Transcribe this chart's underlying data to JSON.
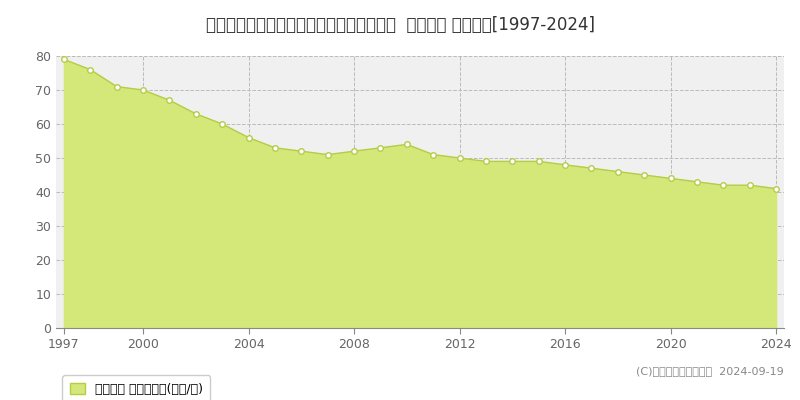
{
  "title": "神奈川県横須賀市桜が丘１丁目８６番３６  基準地価 地価推移[1997-2024]",
  "years": [
    1997,
    1998,
    1999,
    2000,
    2001,
    2002,
    2003,
    2004,
    2005,
    2006,
    2007,
    2008,
    2009,
    2010,
    2011,
    2012,
    2013,
    2014,
    2015,
    2016,
    2017,
    2018,
    2019,
    2020,
    2021,
    2022,
    2023,
    2024
  ],
  "values": [
    79,
    76,
    71,
    70,
    67,
    63,
    60,
    56,
    53,
    52,
    51,
    52,
    53,
    54,
    51,
    50,
    49,
    49,
    49,
    48,
    47,
    46,
    45,
    44,
    43,
    42,
    42,
    41
  ],
  "line_color": "#b5cc47",
  "fill_color": "#d4e87a",
  "marker_face": "#ffffff",
  "marker_edge": "#b5cc47",
  "bg_color": "#ffffff",
  "plot_bg_color": "#f0f0f0",
  "grid_color": "#bbbbbb",
  "ylim": [
    0,
    80
  ],
  "yticks": [
    0,
    10,
    20,
    30,
    40,
    50,
    60,
    70,
    80
  ],
  "xticks": [
    1997,
    2000,
    2004,
    2008,
    2012,
    2016,
    2020,
    2024
  ],
  "legend_label": "基準地価 平均坪単価(万円/坪)",
  "copyright": "(C)土地価格ドットコム  2024-09-19",
  "title_fontsize": 12,
  "tick_fontsize": 9,
  "legend_fontsize": 9,
  "copyright_fontsize": 8
}
